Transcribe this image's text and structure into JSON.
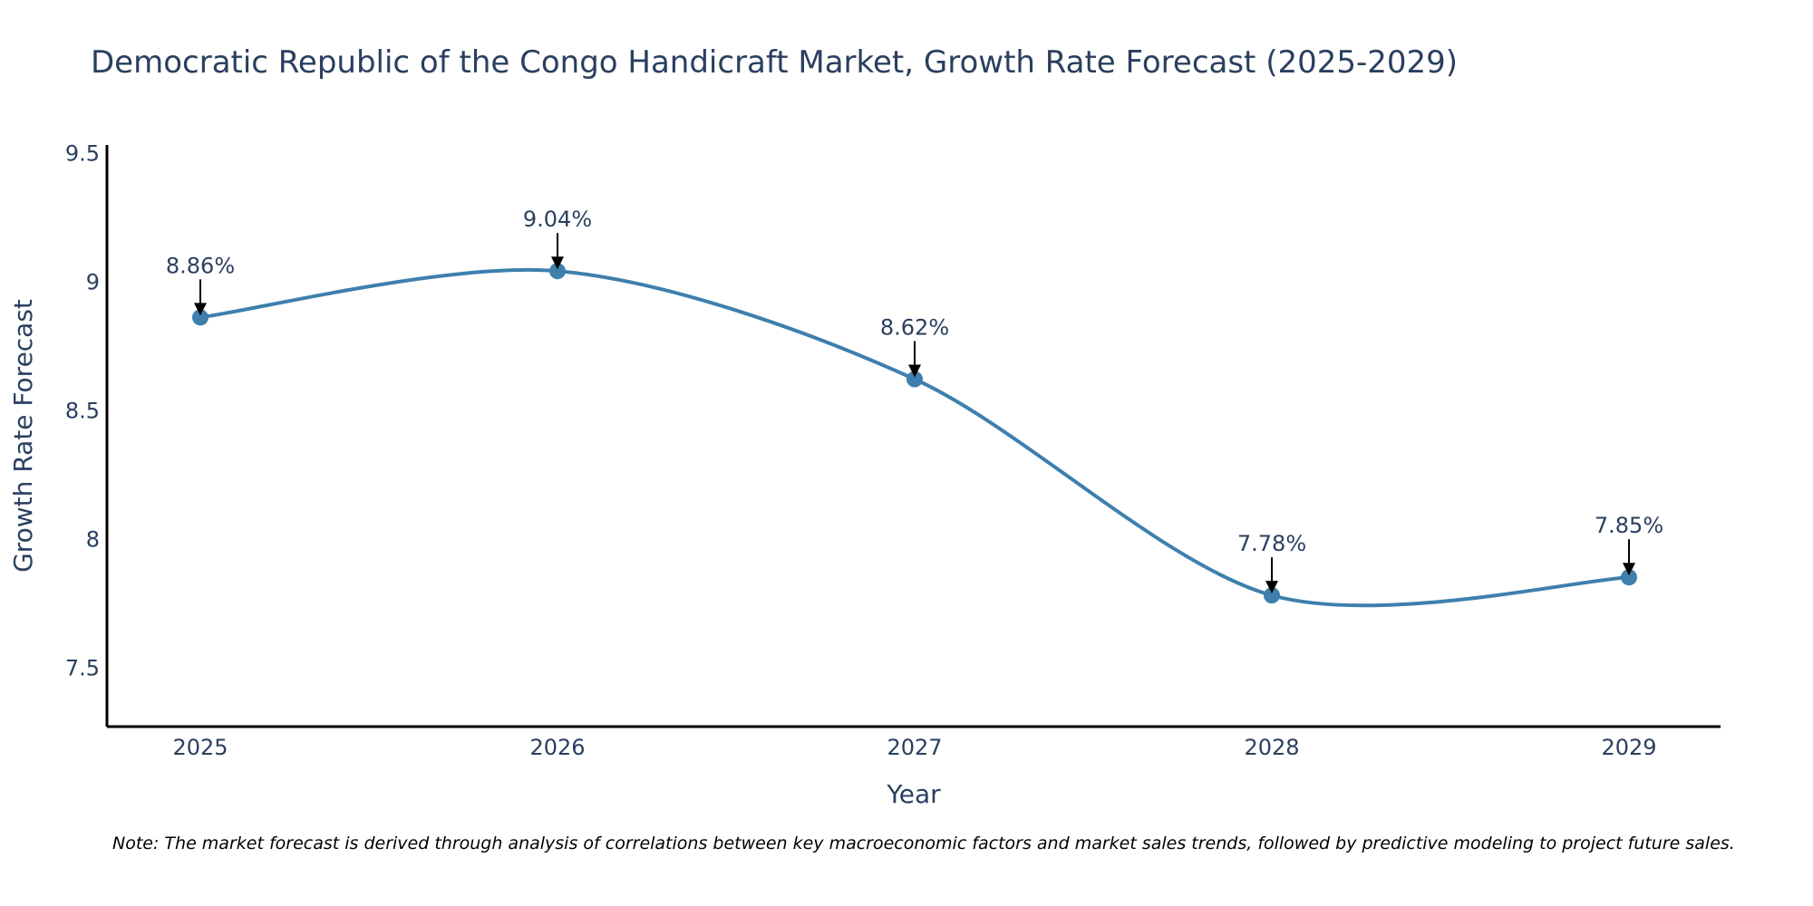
{
  "chart_data": {
    "type": "line",
    "title": "Democratic Republic of the Congo Handicraft Market, Growth Rate Forecast (2025-2029)",
    "xlabel": "Year",
    "ylabel": "Growth Rate Forecast",
    "categories": [
      "2025",
      "2026",
      "2027",
      "2028",
      "2029"
    ],
    "values": [
      8.86,
      9.04,
      8.62,
      7.78,
      7.85
    ],
    "data_labels": [
      "8.86%",
      "9.04%",
      "8.62%",
      "7.78%",
      "7.85%"
    ],
    "yticks": [
      7.5,
      8,
      8.5,
      9,
      9.5
    ],
    "ytick_labels": [
      "7.5",
      "8",
      "8.5",
      "9",
      "9.5"
    ],
    "ylim": [
      7.27,
      9.53
    ],
    "line_shape": "spline",
    "colors": {
      "line": "#3e7fad",
      "marker": "#3e7fad",
      "arrow": "#000000",
      "text": "#2a3f5f"
    }
  },
  "note": "Note: The market forecast is derived through analysis of correlations between key macroeconomic factors and market sales trends, followed by predictive modeling to project future sales."
}
